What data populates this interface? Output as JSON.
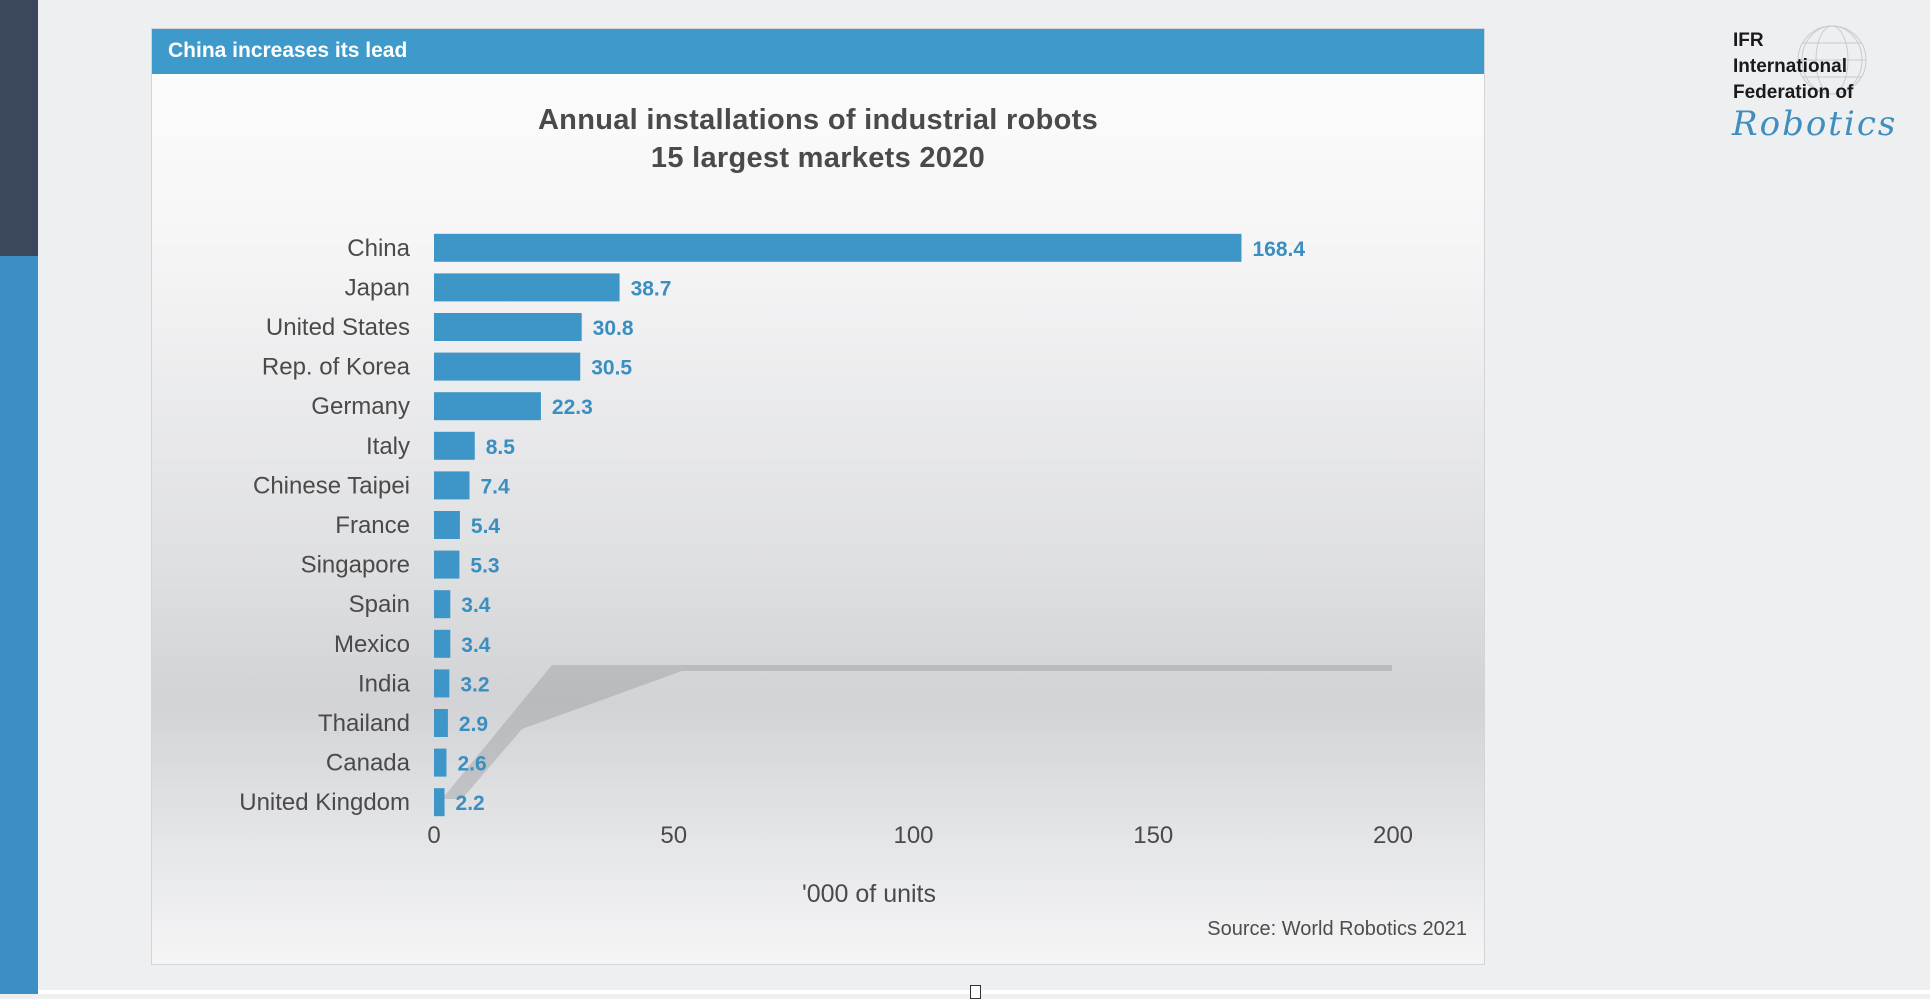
{
  "header": {
    "title": "China increases its lead"
  },
  "logo": {
    "line1": "IFR",
    "line2": "International",
    "line3": "Federation of",
    "script": "Robotics"
  },
  "colors": {
    "accent": "#3d9acb",
    "bar": "#3d96c7",
    "value_label": "#3a8fc0",
    "text": "#4a4a4a"
  },
  "chart_data": {
    "type": "bar",
    "orientation": "horizontal",
    "title": "Annual installations of industrial robots",
    "subtitle": "15 largest markets 2020",
    "xlabel": "'000 of units",
    "ylabel": "",
    "categories": [
      "China",
      "Japan",
      "United States",
      "Rep. of Korea",
      "Germany",
      "Italy",
      "Chinese Taipei",
      "France",
      "Singapore",
      "Spain",
      "Mexico",
      "India",
      "Thailand",
      "Canada",
      "United Kingdom"
    ],
    "values": [
      168.4,
      38.7,
      30.8,
      30.5,
      22.3,
      8.5,
      7.4,
      5.4,
      5.3,
      3.4,
      3.4,
      3.2,
      2.9,
      2.6,
      2.2
    ],
    "value_labels": [
      "168.4",
      "38.7",
      "30.8",
      "30.5",
      "22.3",
      "8.5",
      "7.4",
      "5.4",
      "5.3",
      "3.4",
      "3.4",
      "3.2",
      "2.9",
      "2.6",
      "2.2"
    ],
    "xlim": [
      0,
      200
    ],
    "xticks": [
      "0",
      "50",
      "100",
      "150",
      "200"
    ],
    "grid": false,
    "legend": "none",
    "source": "Source: World Robotics 2021"
  }
}
